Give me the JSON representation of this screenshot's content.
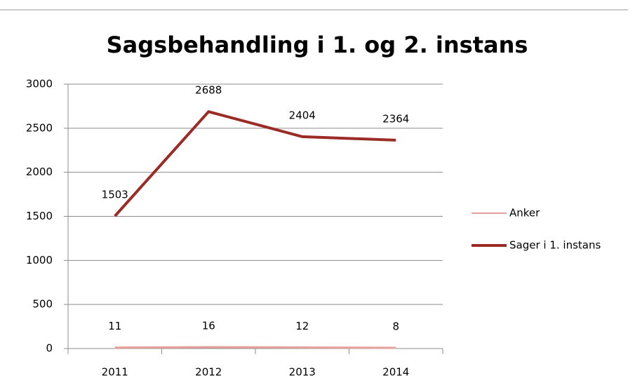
{
  "chart_data": {
    "type": "line",
    "title": "Sagsbehandling i 1. og 2. instans",
    "categories": [
      "2011",
      "2012",
      "2013",
      "2014"
    ],
    "series": [
      {
        "name": "Anker",
        "color": "#e6a09a",
        "values": [
          11,
          16,
          12,
          8
        ]
      },
      {
        "name": "Sager i 1. instans",
        "color": "#9b2b26",
        "values": [
          1503,
          2688,
          2404,
          2364
        ]
      }
    ],
    "ylim": [
      0,
      3000
    ],
    "yticks": [
      0,
      500,
      1000,
      1500,
      2000,
      2500,
      3000
    ],
    "grid": true,
    "legend": "right"
  }
}
